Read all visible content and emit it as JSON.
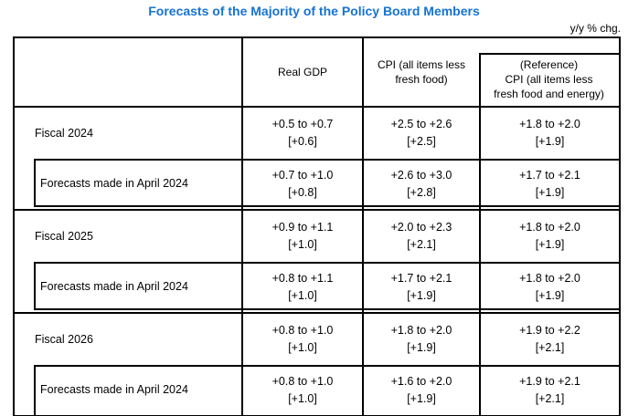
{
  "page": {
    "title": "Forecasts of the Majority of the Policy Board Members",
    "unit_note": "y/y % chg."
  },
  "accent_color": "#1673d2",
  "table": {
    "header": {
      "row_label": "",
      "real_gdp": "Real GDP",
      "cpi": "CPI (all items less\nfresh food)",
      "cpi_reference": "(Reference)\nCPI (all items less\nfresh food and energy)"
    },
    "rows": [
      {
        "label": "Fiscal 2024",
        "kind": "fiscal",
        "real_gdp": {
          "range": "+0.5 to +0.7",
          "median": "[+0.6]"
        },
        "cpi": {
          "range": "+2.5 to +2.6",
          "median": "[+2.5]"
        },
        "cpi_reference": {
          "range": "+1.8 to +2.0",
          "median": "[+1.9]"
        }
      },
      {
        "label": "Forecasts made in April 2024",
        "kind": "subrow",
        "real_gdp": {
          "range": "+0.7 to +1.0",
          "median": "[+0.8]"
        },
        "cpi": {
          "range": "+2.6 to +3.0",
          "median": "[+2.8]"
        },
        "cpi_reference": {
          "range": "+1.7 to +2.1",
          "median": "[+1.9]"
        }
      },
      {
        "label": "Fiscal 2025",
        "kind": "fiscal",
        "real_gdp": {
          "range": "+0.9 to +1.1",
          "median": "[+1.0]"
        },
        "cpi": {
          "range": "+2.0 to +2.3",
          "median": "[+2.1]"
        },
        "cpi_reference": {
          "range": "+1.8 to +2.0",
          "median": "[+1.9]"
        }
      },
      {
        "label": "Forecasts made in April 2024",
        "kind": "subrow",
        "real_gdp": {
          "range": "+0.8 to +1.1",
          "median": "[+1.0]"
        },
        "cpi": {
          "range": "+1.7 to +2.1",
          "median": "[+1.9]"
        },
        "cpi_reference": {
          "range": "+1.8 to +2.0",
          "median": "[+1.9]"
        }
      },
      {
        "label": "Fiscal 2026",
        "kind": "fiscal",
        "real_gdp": {
          "range": "+0.8 to +1.0",
          "median": "[+1.0]"
        },
        "cpi": {
          "range": "+1.8 to +2.0",
          "median": "[+1.9]"
        },
        "cpi_reference": {
          "range": "+1.9 to +2.2",
          "median": "[+2.1]"
        }
      },
      {
        "label": "Forecasts made in April 2024",
        "kind": "subrow",
        "real_gdp": {
          "range": "+0.8 to +1.0",
          "median": "[+1.0]"
        },
        "cpi": {
          "range": "+1.6 to +2.0",
          "median": "[+1.9]"
        },
        "cpi_reference": {
          "range": "+1.9 to +2.1",
          "median": "[+2.1]"
        }
      }
    ]
  }
}
